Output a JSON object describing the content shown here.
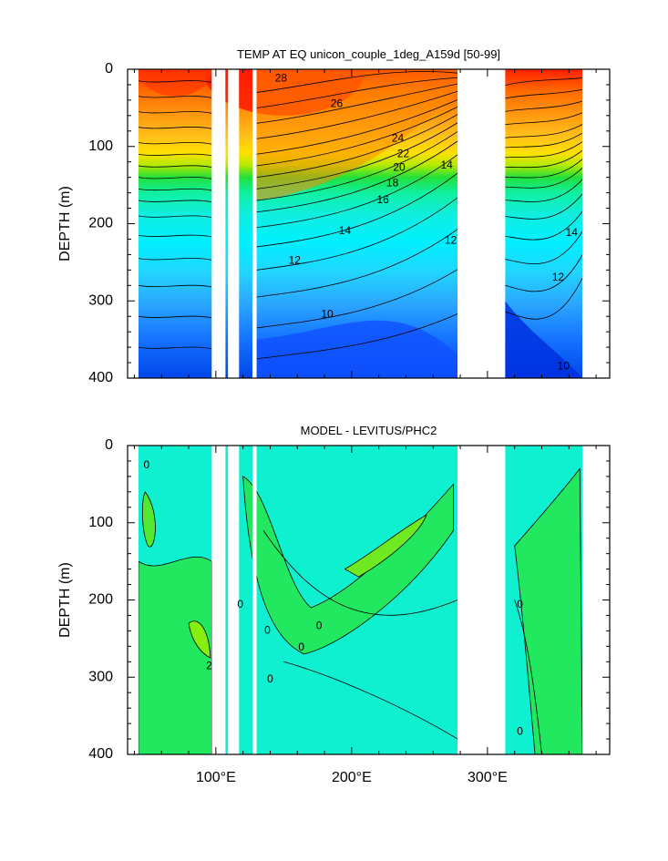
{
  "chart_data": [
    {
      "type": "heatmap",
      "title": "TEMP AT EQ unicon_couple_1deg_A159d [50-99]",
      "xlabel": "",
      "ylabel": "DEPTH (m)",
      "xlim": [
        35,
        390
      ],
      "ylim": [
        400,
        0
      ],
      "yticks": [
        0,
        100,
        200,
        300,
        400
      ],
      "ytick_labels": [
        "0",
        "100",
        "200",
        "300",
        "400"
      ],
      "xticks": [
        100,
        200,
        300
      ],
      "xtick_labels": [
        "",
        "",
        ""
      ],
      "land_gaps": [
        [
          97,
          107
        ],
        [
          109,
          117
        ],
        [
          127,
          130
        ],
        [
          278,
          313
        ]
      ],
      "ocean_segments": [
        [
          43,
          97
        ],
        [
          107,
          109
        ],
        [
          117,
          127
        ],
        [
          130,
          278
        ],
        [
          313,
          370
        ]
      ],
      "contour_labels": [
        {
          "text": "28",
          "x": 148,
          "y": 12
        },
        {
          "text": "26",
          "x": 189,
          "y": 45
        },
        {
          "text": "24",
          "x": 234,
          "y": 90
        },
        {
          "text": "22",
          "x": 238,
          "y": 110
        },
        {
          "text": "20",
          "x": 235,
          "y": 128
        },
        {
          "text": "18",
          "x": 230,
          "y": 148
        },
        {
          "text": "16",
          "x": 223,
          "y": 170
        },
        {
          "text": "14",
          "x": 195,
          "y": 210
        },
        {
          "text": "14",
          "x": 270,
          "y": 125
        },
        {
          "text": "14",
          "x": 362,
          "y": 212
        },
        {
          "text": "12",
          "x": 158,
          "y": 248
        },
        {
          "text": "12",
          "x": 273,
          "y": 222
        },
        {
          "text": "12",
          "x": 352,
          "y": 270
        },
        {
          "text": "10",
          "x": 182,
          "y": 318
        },
        {
          "text": "10",
          "x": 356,
          "y": 385
        }
      ]
    },
    {
      "type": "heatmap",
      "title": "MODEL - LEVITUS/PHC2",
      "xlabel": "",
      "ylabel": "DEPTH (m)",
      "xlim": [
        35,
        390
      ],
      "ylim": [
        400,
        0
      ],
      "yticks": [
        0,
        100,
        200,
        300,
        400
      ],
      "ytick_labels": [
        "0",
        "100",
        "200",
        "300",
        "400"
      ],
      "xticks": [
        100,
        200,
        300
      ],
      "xtick_labels": [
        "100°E",
        "200°E",
        "300°E"
      ],
      "land_gaps": [
        [
          97,
          107
        ],
        [
          109,
          117
        ],
        [
          127,
          130
        ],
        [
          278,
          313
        ]
      ],
      "ocean_segments": [
        [
          43,
          97
        ],
        [
          107,
          109
        ],
        [
          117,
          127
        ],
        [
          130,
          278
        ],
        [
          313,
          370
        ]
      ],
      "contour_labels": [
        {
          "text": "0",
          "x": 49,
          "y": 26
        },
        {
          "text": "2",
          "x": 95,
          "y": 286
        },
        {
          "text": "0",
          "x": 118,
          "y": 206
        },
        {
          "text": "0",
          "x": 138,
          "y": 240
        },
        {
          "text": "0",
          "x": 140,
          "y": 303
        },
        {
          "text": "0",
          "x": 163,
          "y": 262
        },
        {
          "text": "0",
          "x": 176,
          "y": 234
        },
        {
          "text": "0",
          "x": 324,
          "y": 206
        },
        {
          "text": "0",
          "x": 324,
          "y": 371
        }
      ]
    }
  ]
}
